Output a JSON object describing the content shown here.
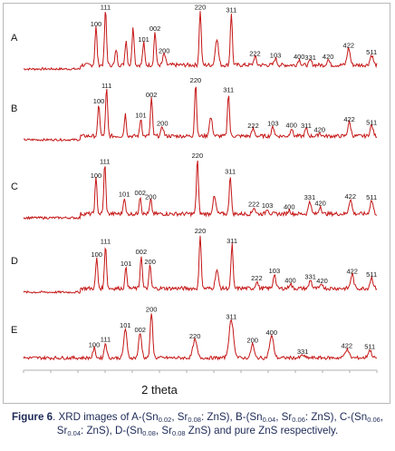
{
  "chart_data": {
    "type": "line",
    "xlabel": "2 theta",
    "ylabel": "",
    "colors": {
      "trace": "#c51616",
      "axis": "#b0b0b0",
      "text": "#141414",
      "caption": "#1d2a57"
    },
    "panels": [
      {
        "name": "A",
        "peaks": [
          {
            "pos": 0.205,
            "h": 0.68,
            "w": 0.004,
            "label": "100"
          },
          {
            "pos": 0.232,
            "h": 0.98,
            "w": 0.004,
            "label": "111"
          },
          {
            "pos": 0.262,
            "h": 0.28,
            "w": 0.004,
            "label": ""
          },
          {
            "pos": 0.29,
            "h": 0.45,
            "w": 0.004,
            "label": ""
          },
          {
            "pos": 0.31,
            "h": 0.7,
            "w": 0.004,
            "label": ""
          },
          {
            "pos": 0.34,
            "h": 0.4,
            "w": 0.004,
            "label": "101"
          },
          {
            "pos": 0.372,
            "h": 0.6,
            "w": 0.004,
            "label": "002"
          },
          {
            "pos": 0.398,
            "h": 0.2,
            "w": 0.005,
            "label": "200"
          },
          {
            "pos": 0.5,
            "h": 0.98,
            "w": 0.004,
            "label": "220"
          },
          {
            "pos": 0.547,
            "h": 0.48,
            "w": 0.006,
            "label": ""
          },
          {
            "pos": 0.588,
            "h": 0.93,
            "w": 0.004,
            "label": "311"
          },
          {
            "pos": 0.655,
            "h": 0.15,
            "w": 0.005,
            "label": "222"
          },
          {
            "pos": 0.713,
            "h": 0.12,
            "w": 0.005,
            "label": "103"
          },
          {
            "pos": 0.78,
            "h": 0.1,
            "w": 0.005,
            "label": "400"
          },
          {
            "pos": 0.812,
            "h": 0.08,
            "w": 0.005,
            "label": "331"
          },
          {
            "pos": 0.862,
            "h": 0.1,
            "w": 0.005,
            "label": "420"
          },
          {
            "pos": 0.92,
            "h": 0.3,
            "w": 0.006,
            "label": "422"
          },
          {
            "pos": 0.985,
            "h": 0.18,
            "w": 0.006,
            "label": "511"
          }
        ]
      },
      {
        "name": "B",
        "peaks": [
          {
            "pos": 0.213,
            "h": 0.6,
            "w": 0.004,
            "label": "100"
          },
          {
            "pos": 0.235,
            "h": 0.9,
            "w": 0.004,
            "label": "111"
          },
          {
            "pos": 0.288,
            "h": 0.42,
            "w": 0.004,
            "label": ""
          },
          {
            "pos": 0.332,
            "h": 0.34,
            "w": 0.004,
            "label": "101"
          },
          {
            "pos": 0.362,
            "h": 0.72,
            "w": 0.004,
            "label": "002"
          },
          {
            "pos": 0.393,
            "h": 0.18,
            "w": 0.005,
            "label": "200"
          },
          {
            "pos": 0.487,
            "h": 1.0,
            "w": 0.004,
            "label": "220"
          },
          {
            "pos": 0.53,
            "h": 0.35,
            "w": 0.006,
            "label": ""
          },
          {
            "pos": 0.58,
            "h": 0.82,
            "w": 0.004,
            "label": "311"
          },
          {
            "pos": 0.65,
            "h": 0.14,
            "w": 0.005,
            "label": "222"
          },
          {
            "pos": 0.706,
            "h": 0.18,
            "w": 0.005,
            "label": "103"
          },
          {
            "pos": 0.758,
            "h": 0.15,
            "w": 0.005,
            "label": "400"
          },
          {
            "pos": 0.8,
            "h": 0.14,
            "w": 0.005,
            "label": "311"
          },
          {
            "pos": 0.838,
            "h": 0.06,
            "w": 0.005,
            "label": "420"
          },
          {
            "pos": 0.922,
            "h": 0.26,
            "w": 0.006,
            "label": "422"
          },
          {
            "pos": 0.985,
            "h": 0.2,
            "w": 0.006,
            "label": "511"
          }
        ]
      },
      {
        "name": "C",
        "peaks": [
          {
            "pos": 0.205,
            "h": 0.63,
            "w": 0.004,
            "label": "100"
          },
          {
            "pos": 0.23,
            "h": 0.88,
            "w": 0.004,
            "label": "111"
          },
          {
            "pos": 0.285,
            "h": 0.3,
            "w": 0.004,
            "label": "101"
          },
          {
            "pos": 0.33,
            "h": 0.32,
            "w": 0.004,
            "label": "002"
          },
          {
            "pos": 0.36,
            "h": 0.25,
            "w": 0.004,
            "label": "200"
          },
          {
            "pos": 0.492,
            "h": 0.98,
            "w": 0.004,
            "label": "220"
          },
          {
            "pos": 0.54,
            "h": 0.3,
            "w": 0.006,
            "label": ""
          },
          {
            "pos": 0.585,
            "h": 0.7,
            "w": 0.004,
            "label": "311"
          },
          {
            "pos": 0.652,
            "h": 0.12,
            "w": 0.005,
            "label": "222"
          },
          {
            "pos": 0.69,
            "h": 0.1,
            "w": 0.005,
            "label": "103"
          },
          {
            "pos": 0.752,
            "h": 0.07,
            "w": 0.005,
            "label": "400"
          },
          {
            "pos": 0.81,
            "h": 0.24,
            "w": 0.005,
            "label": "331"
          },
          {
            "pos": 0.84,
            "h": 0.14,
            "w": 0.005,
            "label": "420"
          },
          {
            "pos": 0.925,
            "h": 0.26,
            "w": 0.006,
            "label": "422"
          },
          {
            "pos": 0.985,
            "h": 0.24,
            "w": 0.006,
            "label": "511"
          }
        ]
      },
      {
        "name": "D",
        "peaks": [
          {
            "pos": 0.207,
            "h": 0.57,
            "w": 0.004,
            "label": "100"
          },
          {
            "pos": 0.232,
            "h": 0.81,
            "w": 0.004,
            "label": "111"
          },
          {
            "pos": 0.29,
            "h": 0.4,
            "w": 0.004,
            "label": "101"
          },
          {
            "pos": 0.333,
            "h": 0.62,
            "w": 0.004,
            "label": "002"
          },
          {
            "pos": 0.358,
            "h": 0.43,
            "w": 0.004,
            "label": "200"
          },
          {
            "pos": 0.5,
            "h": 1.0,
            "w": 0.004,
            "label": "220"
          },
          {
            "pos": 0.547,
            "h": 0.34,
            "w": 0.006,
            "label": ""
          },
          {
            "pos": 0.59,
            "h": 0.82,
            "w": 0.004,
            "label": "311"
          },
          {
            "pos": 0.66,
            "h": 0.13,
            "w": 0.005,
            "label": "222"
          },
          {
            "pos": 0.71,
            "h": 0.27,
            "w": 0.005,
            "label": "103"
          },
          {
            "pos": 0.755,
            "h": 0.09,
            "w": 0.005,
            "label": "400"
          },
          {
            "pos": 0.812,
            "h": 0.16,
            "w": 0.005,
            "label": "331"
          },
          {
            "pos": 0.845,
            "h": 0.08,
            "w": 0.005,
            "label": "420"
          },
          {
            "pos": 0.93,
            "h": 0.26,
            "w": 0.006,
            "label": "422"
          },
          {
            "pos": 0.985,
            "h": 0.2,
            "w": 0.006,
            "label": "511"
          }
        ]
      },
      {
        "name": "E",
        "peaks": [
          {
            "pos": 0.2,
            "h": 0.2,
            "w": 0.005,
            "label": "100"
          },
          {
            "pos": 0.232,
            "h": 0.32,
            "w": 0.005,
            "label": "111"
          },
          {
            "pos": 0.288,
            "h": 0.62,
            "w": 0.006,
            "label": "101"
          },
          {
            "pos": 0.33,
            "h": 0.52,
            "w": 0.006,
            "label": "002"
          },
          {
            "pos": 0.362,
            "h": 0.95,
            "w": 0.005,
            "label": "200"
          },
          {
            "pos": 0.485,
            "h": 0.38,
            "w": 0.008,
            "label": "220"
          },
          {
            "pos": 0.588,
            "h": 0.8,
            "w": 0.009,
            "label": "311"
          },
          {
            "pos": 0.648,
            "h": 0.3,
            "w": 0.006,
            "label": "200"
          },
          {
            "pos": 0.702,
            "h": 0.46,
            "w": 0.008,
            "label": "400"
          },
          {
            "pos": 0.79,
            "h": 0.06,
            "w": 0.006,
            "label": "331"
          },
          {
            "pos": 0.915,
            "h": 0.18,
            "w": 0.008,
            "label": "422"
          },
          {
            "pos": 0.98,
            "h": 0.16,
            "w": 0.007,
            "label": "511"
          }
        ]
      }
    ]
  },
  "caption": {
    "prefix": "Figure 6",
    "parts": [
      {
        "t": ". XRD images of A-(Sn"
      },
      {
        "s": "0.02"
      },
      {
        "t": ", Sr"
      },
      {
        "s": "0.08"
      },
      {
        "t": ": ZnS), B-(Sn"
      },
      {
        "s": "0.04"
      },
      {
        "t": ", Sr"
      },
      {
        "s": "0.06"
      },
      {
        "t": ": ZnS), C-(Sn"
      },
      {
        "s": "0.06"
      },
      {
        "t": ", Sr"
      },
      {
        "s": "0.04"
      },
      {
        "t": ": ZnS), D-(Sn"
      },
      {
        "s": "0.08"
      },
      {
        "t": ", Sr"
      },
      {
        "s": "0.08"
      },
      {
        "t": " ZnS) and pure ZnS respectively."
      }
    ]
  }
}
